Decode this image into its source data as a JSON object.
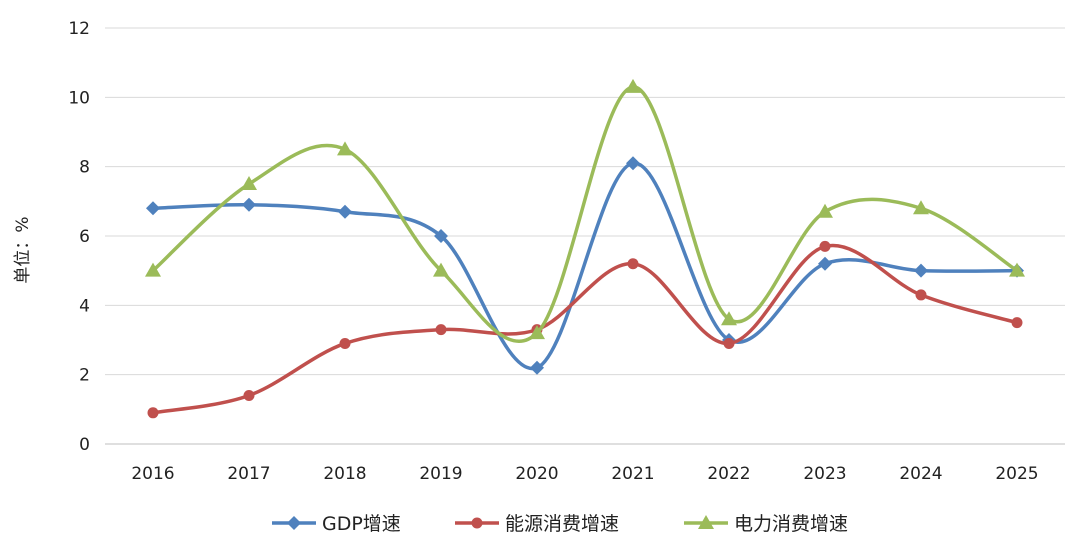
{
  "chart_data": {
    "type": "line",
    "title": "",
    "xlabel": "",
    "ylabel": "单位：%",
    "categories": [
      "2016",
      "2017",
      "2018",
      "2019",
      "2020",
      "2021",
      "2022",
      "2023",
      "2024",
      "2025"
    ],
    "ylim": [
      0,
      12
    ],
    "yticks": [
      0,
      2,
      4,
      6,
      8,
      10,
      12
    ],
    "grid": true,
    "smooth": true,
    "legend_position": "bottom",
    "series": [
      {
        "name": "GDP增速",
        "color": "#4F81BD",
        "marker": "diamond",
        "values": [
          6.8,
          6.9,
          6.7,
          6.0,
          2.2,
          8.1,
          3.0,
          5.2,
          5.0,
          5.0
        ]
      },
      {
        "name": "能源消费增速",
        "color": "#C0504D",
        "marker": "circle",
        "values": [
          0.9,
          1.4,
          2.9,
          3.3,
          3.3,
          5.2,
          2.9,
          5.7,
          4.3,
          3.5
        ]
      },
      {
        "name": "电力消费增速",
        "color": "#9BBB59",
        "marker": "triangle",
        "values": [
          5.0,
          7.5,
          8.5,
          5.0,
          3.2,
          10.3,
          3.6,
          6.7,
          6.8,
          5.0
        ]
      }
    ]
  }
}
